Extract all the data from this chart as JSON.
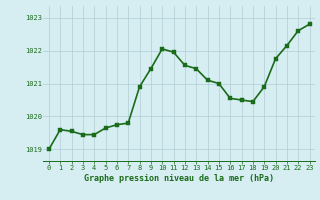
{
  "hours": [
    0,
    1,
    2,
    3,
    4,
    5,
    6,
    7,
    8,
    9,
    10,
    11,
    12,
    13,
    14,
    15,
    16,
    17,
    18,
    19,
    20,
    21,
    22,
    23
  ],
  "pressure": [
    1019.0,
    1019.6,
    1019.55,
    1019.45,
    1019.45,
    1019.65,
    1019.75,
    1019.8,
    1020.9,
    1021.45,
    1022.05,
    1021.95,
    1021.55,
    1021.45,
    1021.1,
    1021.0,
    1020.55,
    1020.5,
    1020.45,
    1020.9,
    1021.75,
    1022.15,
    1022.6,
    1022.8
  ],
  "line_color": "#1a6b1a",
  "marker_color": "#1a6b1a",
  "bg_color": "#d6eef2",
  "grid_color": "#b0ccd4",
  "xlabel": "Graphe pression niveau de la mer (hPa)",
  "xlabel_color": "#1a6b1a",
  "tick_color": "#1a6b1a",
  "ylim": [
    1018.65,
    1023.35
  ],
  "yticks": [
    1019,
    1020,
    1021,
    1022,
    1023
  ],
  "xlim": [
    -0.5,
    23.5
  ],
  "xticks": [
    0,
    1,
    2,
    3,
    4,
    5,
    6,
    7,
    8,
    9,
    10,
    11,
    12,
    13,
    14,
    15,
    16,
    17,
    18,
    19,
    20,
    21,
    22,
    23
  ],
  "marker_size": 2.5,
  "line_width": 1.2,
  "tick_fontsize": 5.0,
  "xlabel_fontsize": 6.0
}
